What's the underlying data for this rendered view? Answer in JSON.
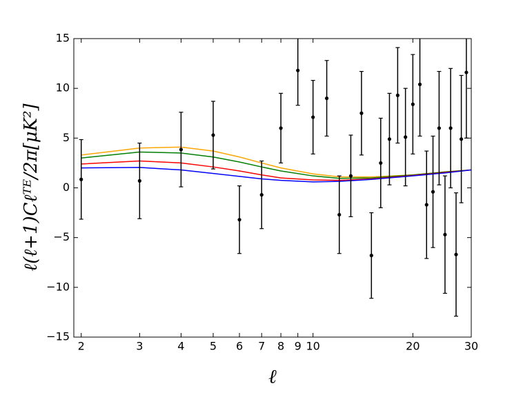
{
  "chart_data": {
    "type": "errorbar_lines",
    "xlabel": "ℓ",
    "ylabel": "ℓ(ℓ+1)Cℓᵀᴱ/2π[μK²]",
    "xscale": "log",
    "xlim": [
      1.9,
      30
    ],
    "ylim": [
      -15,
      15
    ],
    "xticks": [
      2,
      3,
      4,
      5,
      6,
      7,
      8,
      9,
      10,
      20,
      30
    ],
    "yticks": [
      {
        "value": -15,
        "label": "−15"
      },
      {
        "value": -10,
        "label": "−10"
      },
      {
        "value": -5,
        "label": "−5"
      },
      0,
      5,
      10,
      15
    ],
    "points": {
      "color": "#000000",
      "x": [
        2,
        3,
        4,
        5,
        6,
        7,
        8,
        9,
        10,
        11,
        12,
        13,
        14,
        15,
        16,
        17,
        18,
        19,
        20,
        21,
        22,
        23,
        24,
        25,
        26,
        27,
        28,
        29
      ],
      "values": [
        0.85,
        0.7,
        3.85,
        5.3,
        -3.2,
        -0.7,
        6.0,
        11.8,
        7.1,
        9.0,
        -2.7,
        1.2,
        7.5,
        -6.8,
        2.5,
        4.9,
        9.3,
        5.1,
        8.4,
        10.4,
        -1.7,
        -0.4,
        6.0,
        -4.7,
        6.0,
        -6.7,
        4.9,
        11.6
      ],
      "errors": [
        4.0,
        3.8,
        3.75,
        3.4,
        3.4,
        3.4,
        3.5,
        3.5,
        3.7,
        3.8,
        3.9,
        4.1,
        4.2,
        4.3,
        4.5,
        4.6,
        4.8,
        4.9,
        5.0,
        5.2,
        5.4,
        5.6,
        5.7,
        5.9,
        6.0,
        6.2,
        6.4,
        6.6
      ]
    },
    "series": [
      {
        "color": "#ffa500",
        "x": [
          2,
          3,
          4,
          5,
          6,
          7,
          8,
          10,
          12,
          15,
          20,
          25,
          30
        ],
        "values": [
          3.3,
          4.0,
          4.1,
          3.7,
          3.1,
          2.5,
          2.0,
          1.4,
          1.1,
          1.1,
          1.3,
          1.6,
          1.8
        ]
      },
      {
        "color": "#008000",
        "x": [
          2,
          3,
          4,
          5,
          6,
          7,
          8,
          10,
          12,
          15,
          20,
          25,
          30
        ],
        "values": [
          3.0,
          3.6,
          3.5,
          3.1,
          2.6,
          2.1,
          1.7,
          1.2,
          0.95,
          1.0,
          1.3,
          1.6,
          1.8
        ]
      },
      {
        "color": "#ff0000",
        "x": [
          2,
          3,
          4,
          5,
          6,
          7,
          8,
          10,
          12,
          15,
          20,
          25,
          30
        ],
        "values": [
          2.4,
          2.7,
          2.5,
          2.1,
          1.7,
          1.3,
          1.0,
          0.8,
          0.75,
          0.9,
          1.25,
          1.55,
          1.8
        ]
      },
      {
        "color": "#0000ff",
        "x": [
          2,
          3,
          4,
          5,
          6,
          7,
          8,
          10,
          12,
          15,
          20,
          25,
          30
        ],
        "values": [
          2.0,
          2.05,
          1.8,
          1.45,
          1.15,
          0.9,
          0.75,
          0.6,
          0.65,
          0.85,
          1.2,
          1.5,
          1.8
        ]
      }
    ]
  }
}
